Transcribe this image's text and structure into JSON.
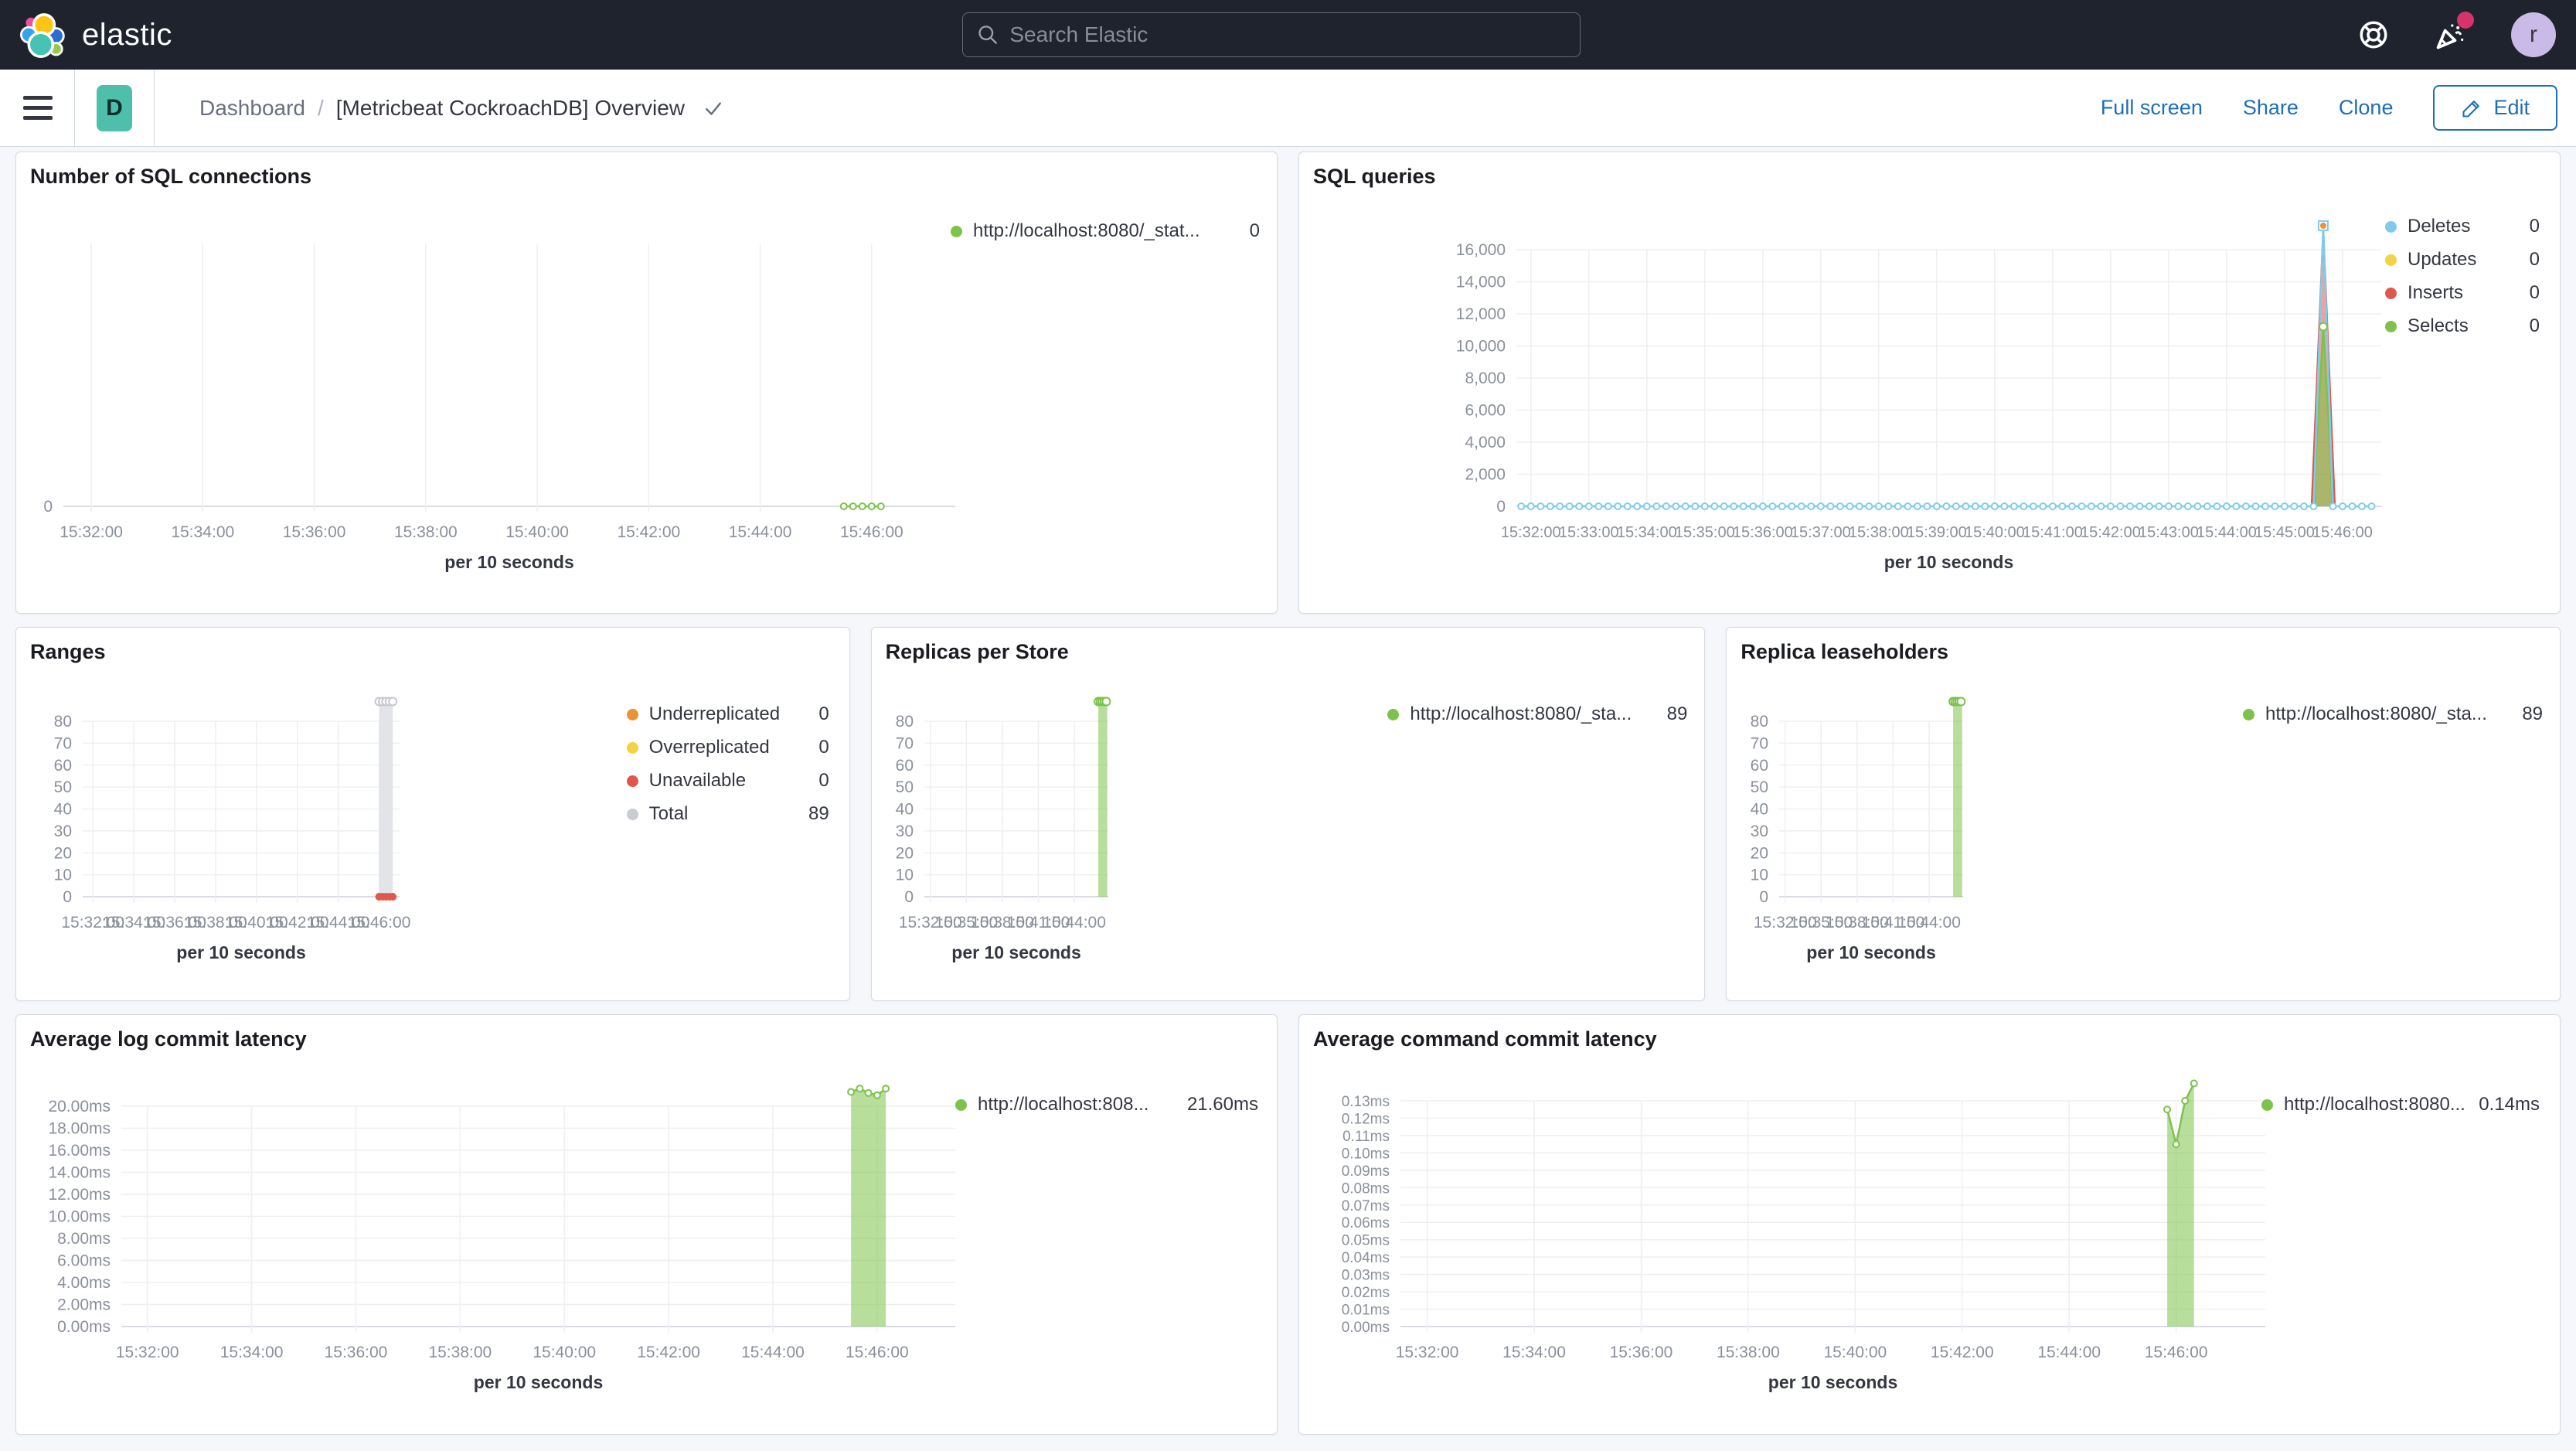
{
  "header": {
    "logo_text": "elastic",
    "search_placeholder": "Search Elastic",
    "avatar_initial": "r"
  },
  "toolbar": {
    "badge": "D",
    "breadcrumb_root": "Dashboard",
    "breadcrumb_sep": "/",
    "breadcrumb_current": "[Metricbeat CockroachDB] Overview",
    "full_screen": "Full screen",
    "share": "Share",
    "clone": "Clone",
    "edit": "Edit"
  },
  "colors": {
    "link_blue": "#1f6fb5",
    "header_bg": "#1e232d",
    "badge_teal": "#4ebfab",
    "avatar_purple": "#c9bae7",
    "notification_pink": "#d6336c",
    "series_green": "#7DC24B",
    "series_blue": "#7FCBEF",
    "series_yellow": "#F1D344",
    "series_red": "#E2574C",
    "series_orange": "#EB9233",
    "series_gray": "#C9CCD2"
  },
  "chart_data": [
    {
      "type": "line",
      "title": "Number of SQL connections",
      "xlabel": "per 10 seconds",
      "xdomain": [
        "15:31:30",
        "15:47:30"
      ],
      "xticks": [
        "15:32:00",
        "15:34:00",
        "15:36:00",
        "15:38:00",
        "15:40:00",
        "15:42:00",
        "15:44:00",
        "15:46:00"
      ],
      "ylim": [
        0,
        10
      ],
      "yticks": [
        [
          0,
          "0"
        ]
      ],
      "series": [
        {
          "name": "http://localhost:8080/_stat...",
          "type": "line",
          "color": "#7DC24B",
          "marker": "circle-open",
          "markerSize": 4,
          "data": [
            [
              "15:45:30",
              0
            ],
            [
              "15:45:40",
              0
            ],
            [
              "15:45:50",
              0
            ],
            [
              "15:46:00",
              0
            ],
            [
              "15:46:10",
              0
            ]
          ]
        }
      ],
      "legend": [
        {
          "label": "http://localhost:8080/_stat...",
          "value": "0",
          "color": "#7DC24B"
        }
      ]
    },
    {
      "type": "area",
      "title": "SQL queries",
      "xlabel": "per 10 seconds",
      "xdomain": [
        "15:31:45",
        "15:46:40"
      ],
      "xticks": [
        "15:32:00",
        "15:33:00",
        "15:34:00",
        "15:35:00",
        "15:36:00",
        "15:37:00",
        "15:38:00",
        "15:39:00",
        "15:40:00",
        "15:41:00",
        "15:42:00",
        "15:43:00",
        "15:44:00",
        "15:45:00",
        "15:46:00"
      ],
      "ylim": [
        0,
        16000
      ],
      "yticks": [
        [
          0,
          "0"
        ],
        [
          2000,
          "2,000"
        ],
        [
          4000,
          "4,000"
        ],
        [
          6000,
          "6,000"
        ],
        [
          8000,
          "8,000"
        ],
        [
          10000,
          "10,000"
        ],
        [
          12000,
          "12,000"
        ],
        [
          14000,
          "14,000"
        ],
        [
          16000,
          "16,000"
        ]
      ],
      "series": [
        {
          "name": "Inserts",
          "type": "area",
          "color": "#E2574C",
          "fillOpacity": 0.55,
          "data": [
            [
              "15:45:28",
              0
            ],
            [
              "15:45:40",
              17200
            ],
            [
              "15:45:52",
              0
            ]
          ]
        },
        {
          "name": "Selects",
          "type": "area",
          "color": "#7DC24B",
          "fillOpacity": 0.6,
          "data": [
            [
              "15:45:31",
              0
            ],
            [
              "15:45:32",
              2600
            ],
            [
              "15:45:40",
              11200
            ],
            [
              "15:45:48",
              2600
            ],
            [
              "15:45:49",
              0
            ]
          ]
        },
        {
          "name": "Deletes",
          "type": "line",
          "color": "#7FCBEF",
          "marker": "circle-open",
          "markerSize": 4,
          "data_generator": {
            "from": "15:31:50",
            "to": "15:46:30",
            "step_seconds": 10,
            "value": 0,
            "overrides": [
              [
                "15:45:40",
                17500
              ]
            ]
          }
        },
        {
          "name": "selects-peak-marker",
          "type": "points",
          "color": "#7DC24B",
          "marker": "circle-open",
          "markerSize": 5,
          "data": [
            [
              "15:45:40",
              11200
            ]
          ]
        },
        {
          "name": "deletes-peak-marker",
          "type": "points",
          "color": "#7FCBEF",
          "marker": "square-open",
          "markerSize": 6,
          "data": [
            [
              "15:45:40",
              17500
            ]
          ]
        },
        {
          "name": "updates-peak-marker",
          "type": "points",
          "color": "#EB9233",
          "marker": "circle-filled",
          "markerSize": 4,
          "data": [
            [
              "15:45:40",
              17500
            ]
          ]
        }
      ],
      "legend": [
        {
          "label": "Deletes",
          "value": "0",
          "color": "#7FCBEF"
        },
        {
          "label": "Updates",
          "value": "0",
          "color": "#F1D344"
        },
        {
          "label": "Inserts",
          "value": "0",
          "color": "#E2574C"
        },
        {
          "label": "Selects",
          "value": "0",
          "color": "#7DC24B"
        }
      ]
    },
    {
      "type": "bar",
      "title": "Ranges",
      "xlabel": "per 10 seconds",
      "xdomain": [
        "15:31:30",
        "15:47:00"
      ],
      "xticks": [
        "15:32:00",
        "15:34:00",
        "15:36:00",
        "15:38:00",
        "15:40:00",
        "15:42:00",
        "15:44:00",
        "15:46:00"
      ],
      "ylim": [
        0,
        80
      ],
      "yticks": [
        [
          0,
          "0"
        ],
        [
          10,
          "10"
        ],
        [
          20,
          "20"
        ],
        [
          30,
          "30"
        ],
        [
          40,
          "40"
        ],
        [
          50,
          "50"
        ],
        [
          60,
          "60"
        ],
        [
          70,
          "70"
        ],
        [
          80,
          "80"
        ]
      ],
      "series": [
        {
          "name": "Total",
          "type": "bar",
          "color": "#E2E4E8",
          "data": [
            [
              "15:46:00",
              "15:46:40",
              89
            ]
          ]
        },
        {
          "name": "total-top-markers",
          "type": "points",
          "color": "#C5C8CE",
          "marker": "circle-open",
          "markerSize": 5,
          "data": [
            [
              "15:46:00",
              89
            ],
            [
              "15:46:10",
              89
            ],
            [
              "15:46:20",
              89
            ],
            [
              "15:46:30",
              89
            ],
            [
              "15:46:40",
              89
            ]
          ]
        },
        {
          "name": "Unavailable",
          "type": "points",
          "color": "#E2574C",
          "marker": "circle-filled",
          "markerSize": 5,
          "data": [
            [
              "15:46:00",
              0
            ],
            [
              "15:46:10",
              0
            ],
            [
              "15:46:20",
              0
            ],
            [
              "15:46:30",
              0
            ],
            [
              "15:46:40",
              0
            ]
          ]
        }
      ],
      "legend": [
        {
          "label": "Underreplicated",
          "value": "0",
          "color": "#EB9233"
        },
        {
          "label": "Overreplicated",
          "value": "0",
          "color": "#F1D344"
        },
        {
          "label": "Unavailable",
          "value": "0",
          "color": "#E2574C"
        },
        {
          "label": "Total",
          "value": "89",
          "color": "#C9CCD2"
        }
      ]
    },
    {
      "type": "bar",
      "title": "Replicas per Store",
      "xlabel": "per 10 seconds",
      "xdomain": [
        "15:31:30",
        "15:46:50"
      ],
      "xticks": [
        "15:32:00",
        "15:35:00",
        "15:38:00",
        "15:41:00",
        "15:44:00"
      ],
      "ylim": [
        0,
        80
      ],
      "yticks": [
        [
          0,
          "0"
        ],
        [
          10,
          "10"
        ],
        [
          20,
          "20"
        ],
        [
          30,
          "30"
        ],
        [
          40,
          "40"
        ],
        [
          50,
          "50"
        ],
        [
          60,
          "60"
        ],
        [
          70,
          "70"
        ],
        [
          80,
          "80"
        ]
      ],
      "series": [
        {
          "name": "http://localhost:8080/_sta...",
          "type": "bar",
          "color": "#7DC24B",
          "fillOpacity": 0.55,
          "data": [
            [
              "15:46:00",
              "15:46:45",
              89
            ]
          ]
        },
        {
          "name": "bar-top-markers",
          "type": "points",
          "color": "#7DC24B",
          "marker": "circle-open",
          "markerSize": 5,
          "data": [
            [
              "15:46:00",
              89
            ],
            [
              "15:46:10",
              89
            ],
            [
              "15:46:20",
              89
            ],
            [
              "15:46:30",
              89
            ],
            [
              "15:46:40",
              89
            ]
          ]
        }
      ],
      "legend": [
        {
          "label": "http://localhost:8080/_sta...",
          "value": "89",
          "color": "#7DC24B"
        }
      ]
    },
    {
      "type": "bar",
      "title": "Replica leaseholders",
      "xlabel": "per 10 seconds",
      "xdomain": [
        "15:31:30",
        "15:46:50"
      ],
      "xticks": [
        "15:32:00",
        "15:35:00",
        "15:38:00",
        "15:41:00",
        "15:44:00"
      ],
      "ylim": [
        0,
        80
      ],
      "yticks": [
        [
          0,
          "0"
        ],
        [
          10,
          "10"
        ],
        [
          20,
          "20"
        ],
        [
          30,
          "30"
        ],
        [
          40,
          "40"
        ],
        [
          50,
          "50"
        ],
        [
          60,
          "60"
        ],
        [
          70,
          "70"
        ],
        [
          80,
          "80"
        ]
      ],
      "series": [
        {
          "name": "http://localhost:8080/_sta...",
          "type": "bar",
          "color": "#7DC24B",
          "fillOpacity": 0.55,
          "data": [
            [
              "15:46:00",
              "15:46:45",
              89
            ]
          ]
        },
        {
          "name": "bar-top-markers",
          "type": "points",
          "color": "#7DC24B",
          "marker": "circle-open",
          "markerSize": 5,
          "data": [
            [
              "15:46:00",
              89
            ],
            [
              "15:46:10",
              89
            ],
            [
              "15:46:20",
              89
            ],
            [
              "15:46:30",
              89
            ],
            [
              "15:46:40",
              89
            ]
          ]
        }
      ],
      "legend": [
        {
          "label": "http://localhost:8080/_sta...",
          "value": "89",
          "color": "#7DC24B"
        }
      ]
    },
    {
      "type": "area",
      "title": "Average log commit latency",
      "xlabel": "per 10 seconds",
      "xdomain": [
        "15:31:30",
        "15:47:30"
      ],
      "xticks": [
        "15:32:00",
        "15:34:00",
        "15:36:00",
        "15:38:00",
        "15:40:00",
        "15:42:00",
        "15:44:00",
        "15:46:00"
      ],
      "ylim": [
        0,
        20
      ],
      "yticks": [
        [
          0,
          "0.00ms"
        ],
        [
          2,
          "2.00ms"
        ],
        [
          4,
          "4.00ms"
        ],
        [
          6,
          "6.00ms"
        ],
        [
          8,
          "8.00ms"
        ],
        [
          10,
          "10.00ms"
        ],
        [
          12,
          "12.00ms"
        ],
        [
          14,
          "14.00ms"
        ],
        [
          16,
          "16.00ms"
        ],
        [
          18,
          "18.00ms"
        ],
        [
          20,
          "20.00ms"
        ]
      ],
      "series": [
        {
          "name": "http://localhost:808...",
          "type": "area",
          "color": "#7DC24B",
          "fillOpacity": 0.55,
          "marker": "circle-open",
          "markerSize": 4,
          "data": [
            [
              "15:45:30",
              21.3
            ],
            [
              "15:45:40",
              21.6
            ],
            [
              "15:45:50",
              21.2
            ],
            [
              "15:46:00",
              21.0
            ],
            [
              "15:46:10",
              21.6
            ]
          ]
        }
      ],
      "legend": [
        {
          "label": "http://localhost:808...",
          "value": "21.60ms",
          "color": "#7DC24B"
        }
      ]
    },
    {
      "type": "area",
      "title": "Average command commit latency",
      "xlabel": "per 10 seconds",
      "xdomain": [
        "15:31:30",
        "15:47:40"
      ],
      "xticks": [
        "15:32:00",
        "15:34:00",
        "15:36:00",
        "15:38:00",
        "15:40:00",
        "15:42:00",
        "15:44:00",
        "15:46:00"
      ],
      "ylim": [
        0,
        0.13
      ],
      "yticks": [
        [
          0,
          "0.00ms"
        ],
        [
          0.01,
          "0.01ms"
        ],
        [
          0.02,
          "0.02ms"
        ],
        [
          0.03,
          "0.03ms"
        ],
        [
          0.04,
          "0.04ms"
        ],
        [
          0.05,
          "0.05ms"
        ],
        [
          0.06,
          "0.06ms"
        ],
        [
          0.07,
          "0.07ms"
        ],
        [
          0.08,
          "0.08ms"
        ],
        [
          0.09,
          "0.09ms"
        ],
        [
          0.1,
          "0.10ms"
        ],
        [
          0.11,
          "0.11ms"
        ],
        [
          0.12,
          "0.12ms"
        ],
        [
          0.13,
          "0.13ms"
        ]
      ],
      "series": [
        {
          "name": "http://localhost:8080...",
          "type": "area",
          "color": "#7DC24B",
          "fillOpacity": 0.55,
          "marker": "circle-open",
          "markerSize": 4,
          "data": [
            [
              "15:45:50",
              0.125
            ],
            [
              "15:46:00",
              0.105
            ],
            [
              "15:46:10",
              0.13
            ],
            [
              "15:46:20",
              0.14
            ]
          ]
        }
      ],
      "legend": [
        {
          "label": "http://localhost:8080...",
          "value": "0.14ms",
          "color": "#7DC24B"
        }
      ]
    }
  ]
}
